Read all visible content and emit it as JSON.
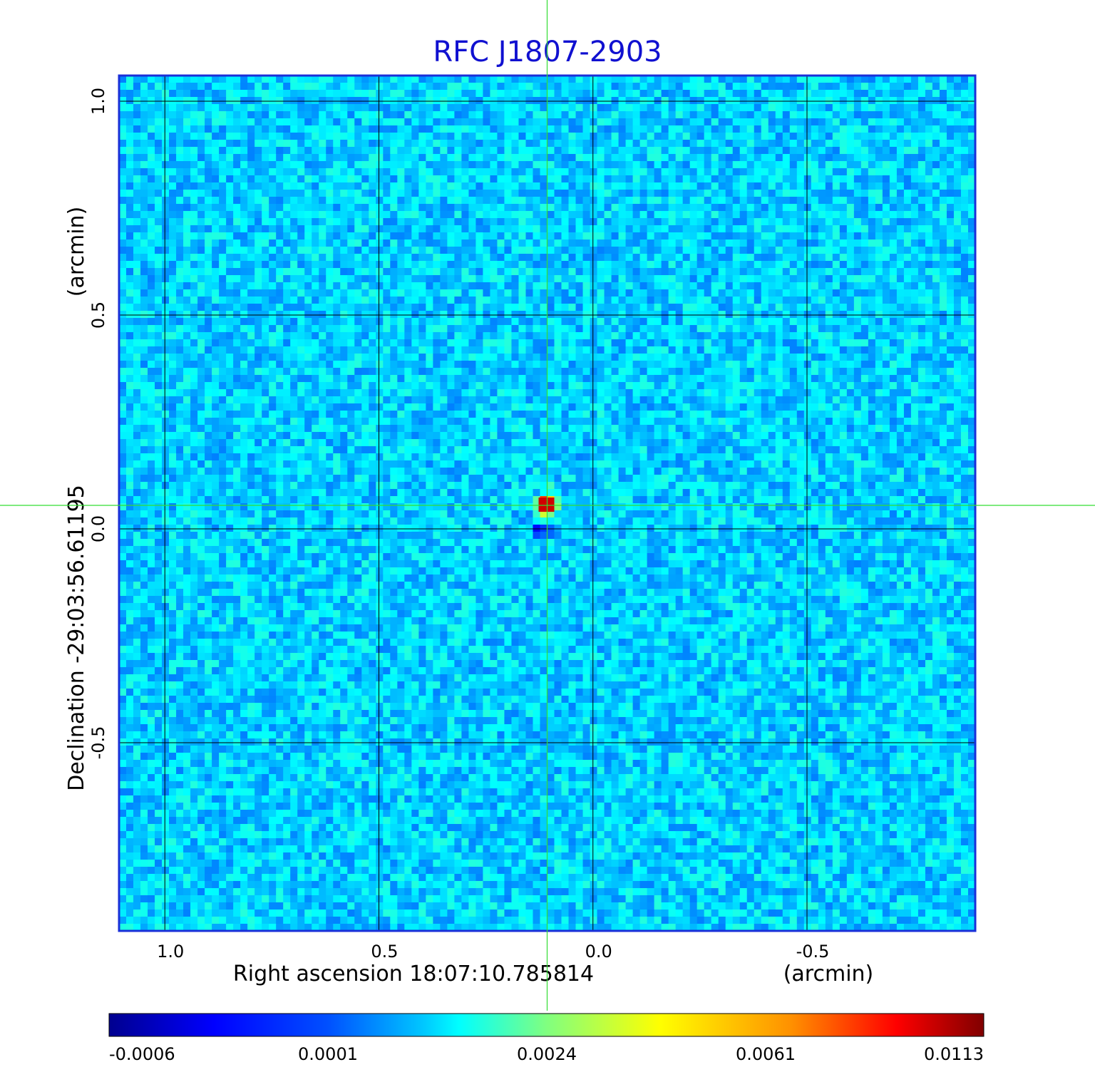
{
  "chart_data": {
    "type": "heatmap",
    "title": "RFC J1807-2903",
    "xlabel": "Right ascension  18:07:10.785814",
    "xunit": "(arcmin)",
    "ylabel": "Declination  -29:03:56.61195",
    "yunit": "(arcmin)",
    "xlim": [
      1.107,
      -0.893
    ],
    "ylim": [
      -0.94,
      1.06
    ],
    "x_ticks": [
      "1.0",
      "0.5",
      "0.0",
      "-0.5"
    ],
    "x_tick_values": [
      1.0,
      0.5,
      0.0,
      -0.5
    ],
    "y_ticks": [
      "1.0",
      "0.5",
      "0.0",
      "-0.5"
    ],
    "y_tick_values": [
      1.0,
      0.5,
      0.0,
      -0.5
    ],
    "grid": true,
    "crosshair": {
      "x": 0.107,
      "y": 0.055
    },
    "source_peak": {
      "x": 0.107,
      "y": 0.055,
      "value": 0.0113
    },
    "colormap": "jet",
    "colorbar": {
      "ticks": [
        "-0.0006",
        "0.0001",
        "0.0024",
        "0.0061",
        "0.0113"
      ],
      "tick_values": [
        -0.0006,
        0.0001,
        0.0024,
        0.0061,
        0.0113
      ],
      "min": -0.0006,
      "max": 0.0113
    },
    "background_level": 0.0001
  },
  "colors": {
    "title": "#1010d0",
    "frame": "#1a2fd8",
    "crosshair": "#33dd33",
    "grid": "#000000"
  }
}
